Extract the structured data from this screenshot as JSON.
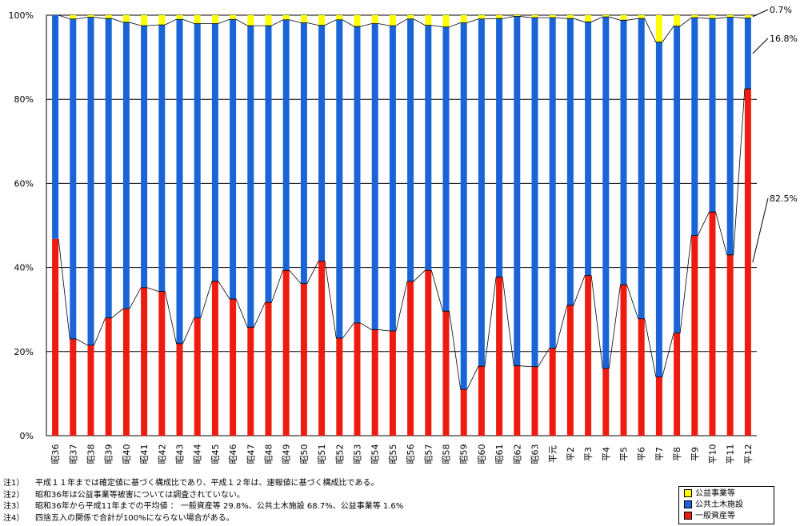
{
  "chart_data": {
    "type": "bar",
    "stacked": true,
    "categories": [
      "昭36",
      "昭37",
      "昭38",
      "昭39",
      "昭40",
      "昭41",
      "昭42",
      "昭43",
      "昭44",
      "昭45",
      "昭46",
      "昭47",
      "昭48",
      "昭49",
      "昭50",
      "昭51",
      "昭52",
      "昭53",
      "昭54",
      "昭55",
      "昭56",
      "昭57",
      "昭58",
      "昭59",
      "昭60",
      "昭61",
      "昭62",
      "昭63",
      "平元",
      "平2",
      "平3",
      "平4",
      "平5",
      "平6",
      "平7",
      "平8",
      "平9",
      "平10",
      "平11",
      "平12"
    ],
    "series": [
      {
        "name": "一般資産等",
        "color": "#ee1c10",
        "values": [
          46.8,
          23.0,
          21.5,
          28.0,
          30.2,
          35.2,
          34.3,
          21.9,
          28.0,
          36.7,
          32.5,
          25.8,
          31.7,
          39.3,
          36.2,
          41.5,
          23.2,
          26.8,
          25.2,
          24.9,
          36.7,
          39.3,
          29.6,
          11.0,
          16.5,
          37.7,
          16.6,
          16.4,
          20.8,
          31.0,
          38.1,
          16.0,
          35.9,
          27.8,
          14.0,
          24.4,
          47.6,
          53.2,
          43.0,
          82.5
        ]
      },
      {
        "name": "公共土木施設",
        "color": "#1a64d8",
        "values": [
          53.2,
          76.1,
          78.0,
          71.2,
          68.1,
          62.3,
          63.4,
          77.1,
          70.0,
          61.3,
          66.5,
          71.7,
          65.8,
          59.6,
          62.0,
          56.1,
          75.7,
          70.5,
          72.8,
          72.6,
          62.4,
          58.3,
          67.6,
          87.2,
          82.6,
          61.5,
          83.1,
          83.0,
          78.6,
          68.2,
          60.3,
          83.6,
          62.9,
          71.4,
          79.6,
          73.0,
          51.8,
          46.0,
          56.5,
          16.8
        ]
      },
      {
        "name": "公益事業等",
        "color": "#ffff00",
        "values": [
          0.0,
          0.9,
          0.5,
          0.8,
          1.7,
          2.5,
          2.3,
          1.0,
          2.0,
          2.0,
          1.0,
          2.5,
          2.5,
          1.1,
          1.8,
          2.4,
          1.1,
          2.7,
          2.0,
          2.5,
          0.9,
          2.4,
          2.8,
          1.8,
          0.9,
          0.8,
          0.3,
          0.6,
          0.6,
          0.8,
          1.6,
          0.4,
          1.2,
          0.8,
          6.4,
          2.6,
          0.6,
          0.8,
          0.5,
          0.7
        ]
      }
    ],
    "ylim": [
      0,
      100
    ],
    "yticks": [
      "0%",
      "20%",
      "40%",
      "60%",
      "80%",
      "100%"
    ],
    "grid": true,
    "annotations": [
      "0.7%",
      "16.8%",
      "82.5%"
    ],
    "legend_position": "bottom-right"
  },
  "notes": [
    {
      "id": "注1）",
      "text": "平成１１年までは確定値に基づく構成比であり、平成１２年は、速報値に基づく構成比である。"
    },
    {
      "id": "注2）",
      "text": "昭和36年は公益事業等被害については調査されていない。"
    },
    {
      "id": "注3）",
      "text": "昭和36年から平成11年までの平均値 ： 一般資産等 29.8%、公共土木施設 68.7%、公益事業等 1.6%"
    },
    {
      "id": "注4）",
      "text": "四捨五入の関係で合計が100%にならない場合がある。"
    }
  ],
  "legend": {
    "items": [
      {
        "label": "公益事業等",
        "color": "#ffff00"
      },
      {
        "label": "公共土木施設",
        "color": "#1a64d8"
      },
      {
        "label": "一般資産等",
        "color": "#ee1c10"
      }
    ]
  }
}
